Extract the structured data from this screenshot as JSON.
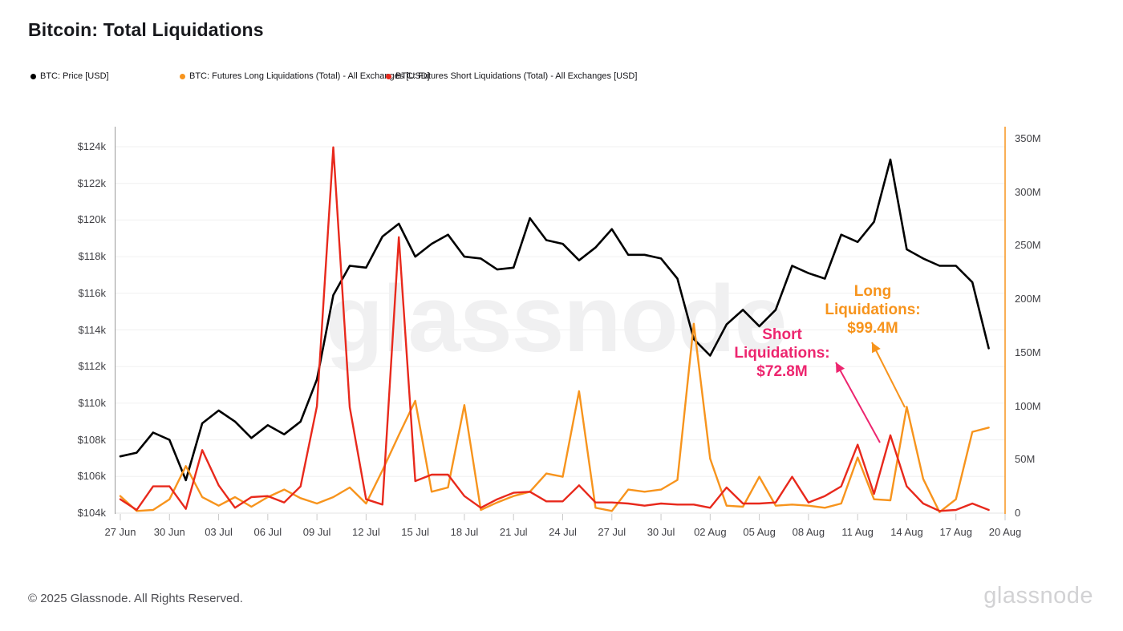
{
  "header": {
    "title": "Bitcoin: Total Liquidations"
  },
  "legend": [
    {
      "label": "BTC: Price [USD]",
      "color": "#000000"
    },
    {
      "label": "BTC: Futures Long Liquidations (Total) - All Exchanges [USD]",
      "color": "#f7941d"
    },
    {
      "label": "BTC: Futures Short Liquidations (Total) - All Exchanges [USD]",
      "color": "#e8291c"
    }
  ],
  "chart_data": {
    "type": "line",
    "watermark": "glassnode",
    "x": [
      "27 Jun",
      "28 Jun",
      "29 Jun",
      "30 Jun",
      "01 Jul",
      "02 Jul",
      "03 Jul",
      "04 Jul",
      "05 Jul",
      "06 Jul",
      "07 Jul",
      "08 Jul",
      "09 Jul",
      "10 Jul",
      "11 Jul",
      "12 Jul",
      "13 Jul",
      "14 Jul",
      "15 Jul",
      "16 Jul",
      "17 Jul",
      "18 Jul",
      "19 Jul",
      "20 Jul",
      "21 Jul",
      "22 Jul",
      "23 Jul",
      "24 Jul",
      "25 Jul",
      "26 Jul",
      "27 Jul",
      "28 Jul",
      "29 Jul",
      "30 Jul",
      "31 Jul",
      "01 Aug",
      "02 Aug",
      "03 Aug",
      "04 Aug",
      "05 Aug",
      "06 Aug",
      "07 Aug",
      "08 Aug",
      "09 Aug",
      "10 Aug",
      "11 Aug",
      "12 Aug",
      "13 Aug",
      "14 Aug",
      "15 Aug",
      "16 Aug",
      "17 Aug",
      "18 Aug",
      "19 Aug"
    ],
    "x_tick_labels": [
      "27 Jun",
      "30 Jun",
      "03 Jul",
      "06 Jul",
      "09 Jul",
      "12 Jul",
      "15 Jul",
      "18 Jul",
      "21 Jul",
      "24 Jul",
      "27 Jul",
      "30 Jul",
      "02 Aug",
      "05 Aug",
      "08 Aug",
      "11 Aug",
      "14 Aug",
      "17 Aug",
      "20 Aug"
    ],
    "series": [
      {
        "name": "BTC: Price [USD]",
        "color": "#000000",
        "axis": "left",
        "unit": "USD thousands",
        "values": [
          107.1,
          107.3,
          108.4,
          108.0,
          105.8,
          108.9,
          109.6,
          109.0,
          108.1,
          108.8,
          108.3,
          109.0,
          111.3,
          115.9,
          117.5,
          117.4,
          119.1,
          119.8,
          118.0,
          118.7,
          119.2,
          118.0,
          117.9,
          117.3,
          117.4,
          120.1,
          118.9,
          118.7,
          117.8,
          118.5,
          119.5,
          118.1,
          118.1,
          117.9,
          116.8,
          113.5,
          112.6,
          114.3,
          115.1,
          114.2,
          115.1,
          117.5,
          117.1,
          116.8,
          119.2,
          118.8,
          119.9,
          123.3,
          118.4,
          117.9,
          117.5,
          117.5,
          116.6,
          113.0
        ]
      },
      {
        "name": "BTC: Futures Long Liquidations (Total) - All Exchanges [USD]",
        "color": "#f7941d",
        "axis": "right",
        "unit": "USD millions",
        "values": [
          16,
          2,
          3,
          13,
          44,
          15,
          7,
          15,
          6,
          15,
          22,
          14,
          9,
          15,
          24,
          9,
          40,
          73,
          105,
          20,
          24,
          101,
          3,
          10,
          16,
          20,
          37,
          34,
          114,
          5,
          2,
          22,
          20,
          22,
          31,
          177,
          51,
          7,
          6,
          34,
          7,
          8,
          7,
          5,
          9,
          52,
          13,
          12,
          99.4,
          32,
          1,
          13,
          76,
          80
        ]
      },
      {
        "name": "BTC: Futures Short Liquidations (Total) - All Exchanges [USD]",
        "color": "#e8291c",
        "axis": "right",
        "unit": "USD millions",
        "values": [
          13,
          3,
          25,
          25,
          4,
          59,
          26,
          5,
          15,
          16,
          10,
          25,
          100,
          342,
          99,
          13,
          8,
          258,
          30,
          36,
          36,
          16,
          5,
          13,
          19,
          20,
          11,
          11,
          26,
          10,
          10,
          9,
          7,
          9,
          8,
          8,
          5,
          24,
          9,
          9,
          10,
          34,
          10,
          16,
          25,
          64,
          18,
          72.8,
          25,
          9,
          2,
          3,
          9,
          3
        ]
      }
    ],
    "left_axis": {
      "ticks": [
        "$104k",
        "$106k",
        "$108k",
        "$110k",
        "$112k",
        "$114k",
        "$116k",
        "$118k",
        "$120k",
        "$122k",
        "$124k"
      ],
      "min": 104000,
      "max": 124000
    },
    "right_axis": {
      "ticks": [
        "0",
        "50M",
        "100M",
        "150M",
        "200M",
        "250M",
        "300M",
        "350M"
      ],
      "min": 0,
      "max": 350000000
    },
    "annotations": [
      {
        "label_lines": [
          "Long",
          "Liquidations:",
          "$99.4M"
        ],
        "value": "$99.4M",
        "date": "14 Aug",
        "color": "#f7941d",
        "text_pos": [
          1088,
          352
        ],
        "arrow_from": [
          1128,
          508
        ],
        "arrow_to": [
          1087,
          427
        ]
      },
      {
        "label_lines": [
          "Short",
          "Liquidations:",
          "$72.8M"
        ],
        "value": "$72.8M",
        "date": "13 Aug",
        "color": "#ed266f",
        "text_pos": [
          975,
          406
        ],
        "arrow_from": [
          1097,
          552
        ],
        "arrow_to": [
          1042,
          452
        ]
      }
    ],
    "grid": true,
    "legend_position": "top"
  },
  "footer": {
    "copyright": "© 2025 Glassnode. All Rights Reserved.",
    "logo": "glassnode"
  }
}
